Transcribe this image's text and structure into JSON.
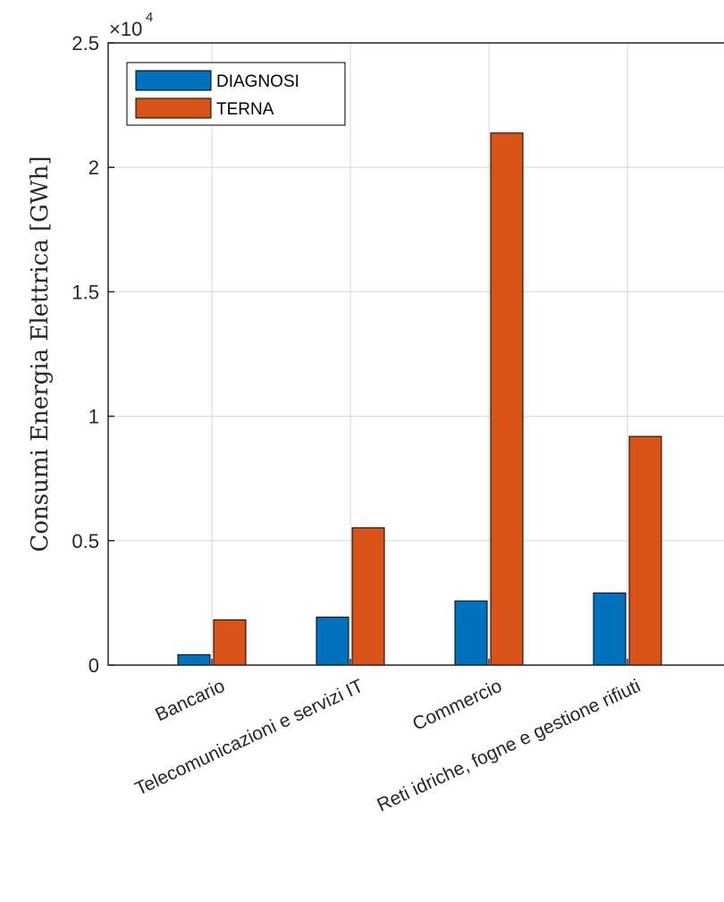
{
  "chart_data": {
    "type": "bar",
    "ylabel": "Consumi Energia Elettrica [GWh]",
    "xlabel": "",
    "exponent_label": {
      "base": "×10",
      "power": "4"
    },
    "categories": [
      "Bancario",
      "Telecomunicazioni e servizi IT",
      "Commercio",
      "Reti idriche, fogne e gestione rifiuti"
    ],
    "series": [
      {
        "name": "DIAGNOSI",
        "color": "#0072BD",
        "values": [
          420,
          1930,
          2580,
          2900
        ]
      },
      {
        "name": "TERNA",
        "color": "#D95319",
        "values": [
          1820,
          5520,
          21380,
          9190
        ]
      }
    ],
    "ylim": [
      0,
      25000
    ],
    "yticks": [
      0,
      5000,
      10000,
      15000,
      20000,
      25000
    ],
    "ytick_labels": [
      "0",
      "0.5",
      "1",
      "1.5",
      "2",
      "2.5"
    ],
    "grid": true,
    "legend_position": "top-left"
  }
}
